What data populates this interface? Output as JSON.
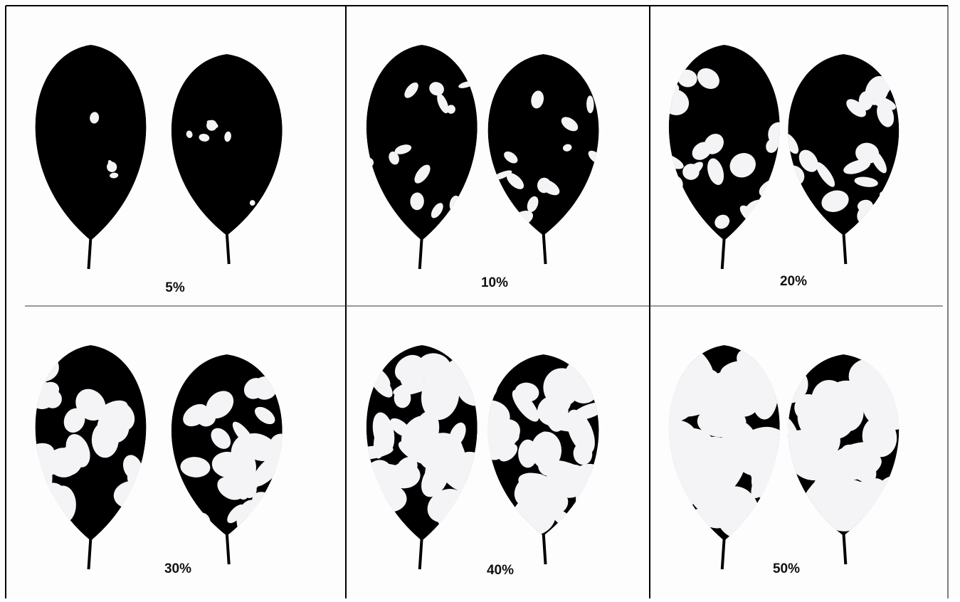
{
  "panels": [
    {
      "label": "5%"
    },
    {
      "label": "10%"
    },
    {
      "label": "20%"
    },
    {
      "label": "30%"
    },
    {
      "label": "40%"
    },
    {
      "label": "50%"
    }
  ]
}
